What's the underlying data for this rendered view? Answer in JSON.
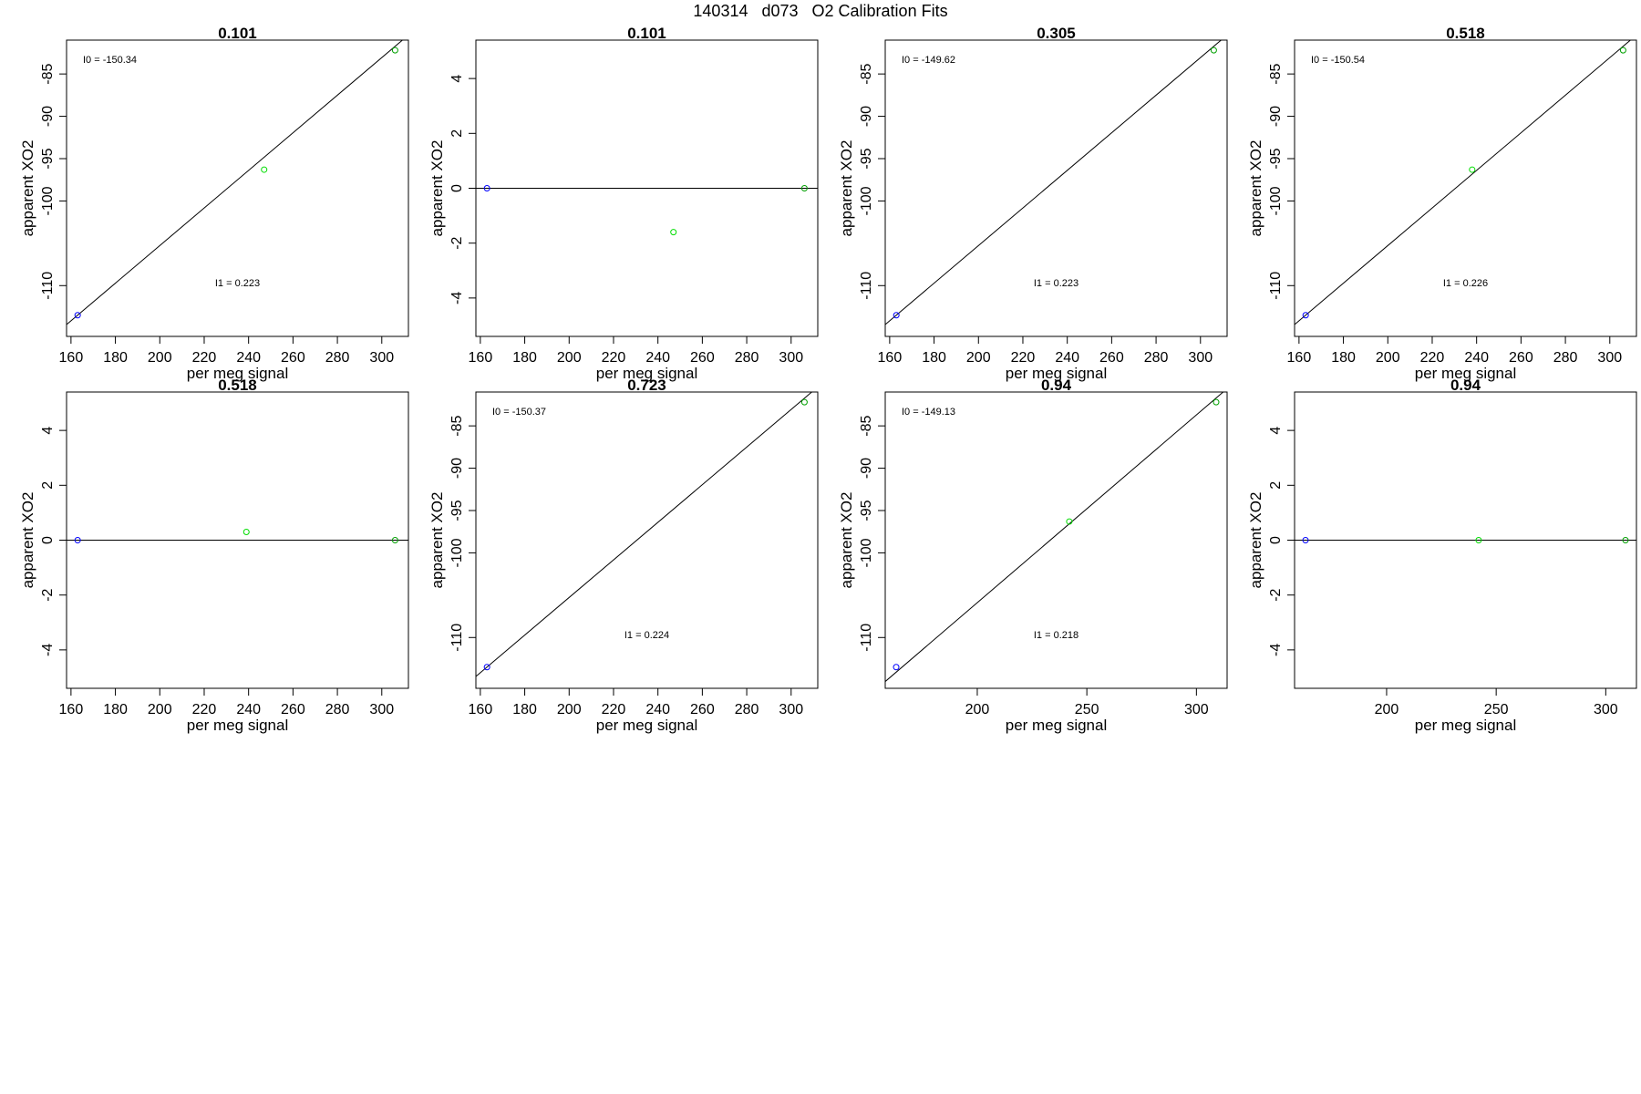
{
  "title": "140314   d073   O2 Calibration Fits",
  "chart_data": [
    {
      "type": "scatter",
      "title": "0.101",
      "xlabel": "per meg signal",
      "ylabel": "apparent XO2",
      "xlim": [
        158,
        312
      ],
      "ylim": [
        -116,
        -81
      ],
      "xticks": [
        160,
        180,
        200,
        220,
        240,
        260,
        280,
        300
      ],
      "yticks": [
        -110,
        -100,
        -95,
        -90,
        -85
      ],
      "points": [
        {
          "x": 163,
          "y": -113.5,
          "color": "#0000ff"
        },
        {
          "x": 247,
          "y": -96.3,
          "color": "#00dd00"
        },
        {
          "x": 306,
          "y": -82.2,
          "color": "#00a000"
        }
      ],
      "line": {
        "x": [
          158,
          312
        ],
        "y": [
          -114.6,
          -80.4
        ]
      },
      "annotations": {
        "I0": "I0 =  -150.34",
        "I1": "I1 =  0.223"
      }
    },
    {
      "type": "scatter",
      "title": "0.101",
      "xlabel": "per meg signal",
      "ylabel": "apparent XO2",
      "xlim": [
        158,
        312
      ],
      "ylim": [
        -5.4,
        5.4
      ],
      "xticks": [
        160,
        180,
        200,
        220,
        240,
        260,
        280,
        300
      ],
      "yticks": [
        -4,
        -2,
        0,
        2,
        4
      ],
      "points": [
        {
          "x": 163,
          "y": 0,
          "color": "#0000ff"
        },
        {
          "x": 247,
          "y": -1.6,
          "color": "#00dd00"
        },
        {
          "x": 306,
          "y": 0,
          "color": "#00a000"
        }
      ],
      "line": {
        "x": [
          158,
          312
        ],
        "y": [
          0,
          0
        ]
      },
      "annotations": {}
    },
    {
      "type": "scatter",
      "title": "0.305",
      "xlabel": "per meg signal",
      "ylabel": "apparent XO2",
      "xlim": [
        158,
        312
      ],
      "ylim": [
        -116,
        -81
      ],
      "xticks": [
        160,
        180,
        200,
        220,
        240,
        260,
        280,
        300
      ],
      "yticks": [
        -110,
        -100,
        -95,
        -90,
        -85
      ],
      "points": [
        {
          "x": 163,
          "y": -113.5,
          "color": "#0000ff"
        },
        {
          "x": 306,
          "y": -82.2,
          "color": "#00a000"
        }
      ],
      "line": {
        "x": [
          158,
          312
        ],
        "y": [
          -114.6,
          -80.4
        ]
      },
      "annotations": {
        "I0": "I0 =  -149.62",
        "I1": "I1 =  0.223"
      }
    },
    {
      "type": "scatter",
      "title": "0.518",
      "xlabel": "per meg signal",
      "ylabel": "apparent XO2",
      "xlim": [
        158,
        312
      ],
      "ylim": [
        -116,
        -81
      ],
      "xticks": [
        160,
        180,
        200,
        220,
        240,
        260,
        280,
        300
      ],
      "yticks": [
        -110,
        -100,
        -95,
        -90,
        -85
      ],
      "points": [
        {
          "x": 163,
          "y": -113.5,
          "color": "#0000ff"
        },
        {
          "x": 238,
          "y": -96.3,
          "color": "#00dd00"
        },
        {
          "x": 306,
          "y": -82.2,
          "color": "#00a000"
        }
      ],
      "line": {
        "x": [
          158,
          312
        ],
        "y": [
          -114.6,
          -80.4
        ]
      },
      "annotations": {
        "I0": "I0 =  -150.54",
        "I1": "I1 =  0.226"
      }
    },
    {
      "type": "scatter",
      "title": "0.518",
      "xlabel": "per meg signal",
      "ylabel": "apparent XO2",
      "xlim": [
        158,
        312
      ],
      "ylim": [
        -5.4,
        5.4
      ],
      "xticks": [
        160,
        180,
        200,
        220,
        240,
        260,
        280,
        300
      ],
      "yticks": [
        -4,
        -2,
        0,
        2,
        4
      ],
      "points": [
        {
          "x": 163,
          "y": 0,
          "color": "#0000ff"
        },
        {
          "x": 239,
          "y": 0.3,
          "color": "#00dd00"
        },
        {
          "x": 306,
          "y": 0,
          "color": "#00a000"
        }
      ],
      "line": {
        "x": [
          158,
          312
        ],
        "y": [
          0,
          0
        ]
      },
      "annotations": {}
    },
    {
      "type": "scatter",
      "title": "0.723",
      "xlabel": "per meg signal",
      "ylabel": "apparent XO2",
      "xlim": [
        158,
        312
      ],
      "ylim": [
        -116,
        -81
      ],
      "xticks": [
        160,
        180,
        200,
        220,
        240,
        260,
        280,
        300
      ],
      "yticks": [
        -110,
        -100,
        -95,
        -90,
        -85
      ],
      "points": [
        {
          "x": 163,
          "y": -113.5,
          "color": "#0000ff"
        },
        {
          "x": 306,
          "y": -82.2,
          "color": "#00a000"
        }
      ],
      "line": {
        "x": [
          158,
          312
        ],
        "y": [
          -114.6,
          -80.4
        ]
      },
      "annotations": {
        "I0": "I0 =  -150.37",
        "I1": "I1 =  0.224"
      }
    },
    {
      "type": "scatter",
      "title": "0.94",
      "xlabel": "per meg signal",
      "ylabel": "apparent XO2",
      "xlim": [
        158,
        314
      ],
      "ylim": [
        -116,
        -81
      ],
      "xticks": [
        200,
        250,
        300
      ],
      "yticks": [
        -110,
        -100,
        -95,
        -90,
        -85
      ],
      "points": [
        {
          "x": 163,
          "y": -113.5,
          "color": "#0000ff"
        },
        {
          "x": 242,
          "y": -96.3,
          "color": "#00dd00"
        },
        {
          "x": 309,
          "y": -82.2,
          "color": "#00a000"
        }
      ],
      "line": {
        "x": [
          158,
          314
        ],
        "y": [
          -115.2,
          -80.6
        ]
      },
      "annotations": {
        "I0": "I0 =  -149.13",
        "I1": "I1 =  0.218"
      }
    },
    {
      "type": "scatter",
      "title": "0.94",
      "xlabel": "per meg signal",
      "ylabel": "apparent XO2",
      "xlim": [
        158,
        314
      ],
      "ylim": [
        -5.4,
        5.4
      ],
      "xticks": [
        200,
        250,
        300
      ],
      "yticks": [
        -4,
        -2,
        0,
        2,
        4
      ],
      "points": [
        {
          "x": 163,
          "y": 0,
          "color": "#0000ff"
        },
        {
          "x": 242,
          "y": 0,
          "color": "#00dd00"
        },
        {
          "x": 309,
          "y": 0,
          "color": "#00a000"
        }
      ],
      "line": {
        "x": [
          158,
          314
        ],
        "y": [
          0,
          0
        ]
      },
      "annotations": {}
    }
  ]
}
